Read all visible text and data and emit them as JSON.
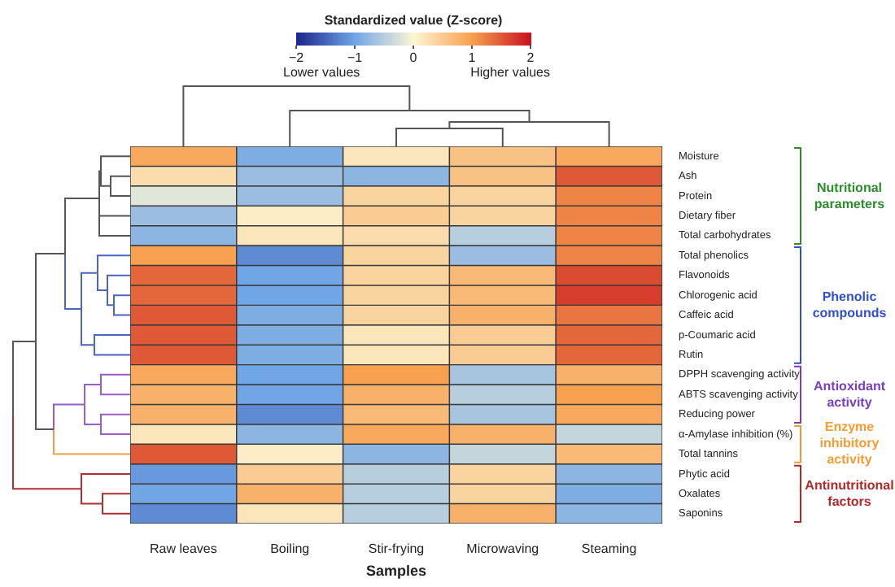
{
  "chart_data": {
    "type": "heatmap",
    "xlabel": "Samples",
    "clabel": "Standardized value (Z-score)",
    "categories": [
      "Raw leaves",
      "Boiling",
      "Stir-frying",
      "Microwaving",
      "Steaming"
    ],
    "y_categories": [
      "Moisture",
      "Ash",
      "Protein",
      "Dietary fiber",
      "Total carbohydrates",
      "Total phenolics",
      "Flavonoids",
      "Chlorogenic acid",
      "Caffeic acid",
      "p-Coumaric acid",
      "Rutin",
      "DPPH scavenging activity",
      "ABTS scavenging activity",
      "Reducing power",
      "α-Amylase inhibition (%)",
      "Total tannins",
      "Phytic acid",
      "Oxalates",
      "Saponins"
    ],
    "cells": [
      [
        0.9,
        -0.9,
        0.2,
        0.6,
        0.9
      ],
      [
        0.3,
        -0.7,
        -0.8,
        0.6,
        1.5
      ],
      [
        -0.2,
        -0.7,
        0.4,
        0.4,
        1.2
      ],
      [
        -0.7,
        0.1,
        0.5,
        0.4,
        1.2
      ],
      [
        -0.8,
        0.2,
        0.3,
        -0.5,
        1.2
      ],
      [
        1.0,
        -1.2,
        0.4,
        -0.7,
        1.2
      ],
      [
        1.4,
        -1.0,
        0.4,
        0.7,
        1.6
      ],
      [
        1.4,
        -1.0,
        0.4,
        0.7,
        1.7
      ],
      [
        1.5,
        -0.9,
        0.4,
        0.8,
        1.3
      ],
      [
        1.5,
        -0.9,
        0.2,
        0.5,
        1.4
      ],
      [
        1.5,
        -0.9,
        0.2,
        0.5,
        1.4
      ],
      [
        0.9,
        -1.0,
        1.0,
        -0.6,
        0.8
      ],
      [
        0.8,
        -1.0,
        0.8,
        -0.5,
        1.0
      ],
      [
        0.8,
        -1.2,
        0.7,
        -0.6,
        0.9
      ],
      [
        0.2,
        -0.8,
        0.9,
        0.8,
        -0.4
      ],
      [
        1.5,
        0.1,
        -0.8,
        -0.4,
        0.7
      ],
      [
        -1.1,
        0.5,
        -0.5,
        0.4,
        -0.8
      ],
      [
        -1.0,
        0.8,
        -0.5,
        0.4,
        -0.9
      ],
      [
        -1.2,
        0.2,
        -0.5,
        0.8,
        -0.8
      ]
    ],
    "clim": [
      -2,
      2
    ],
    "cticks": [
      {
        "value": -2,
        "label": "−2"
      },
      {
        "value": -1,
        "label": "−1"
      },
      0,
      1,
      2
    ],
    "annotations": [
      "Lower values",
      "Higher values",
      "Nutritional parameters",
      "Phenolic compounds",
      "Antioxidant activity",
      "Enzyme inhibitory activity",
      "Antinutritional factors"
    ]
  }
}
